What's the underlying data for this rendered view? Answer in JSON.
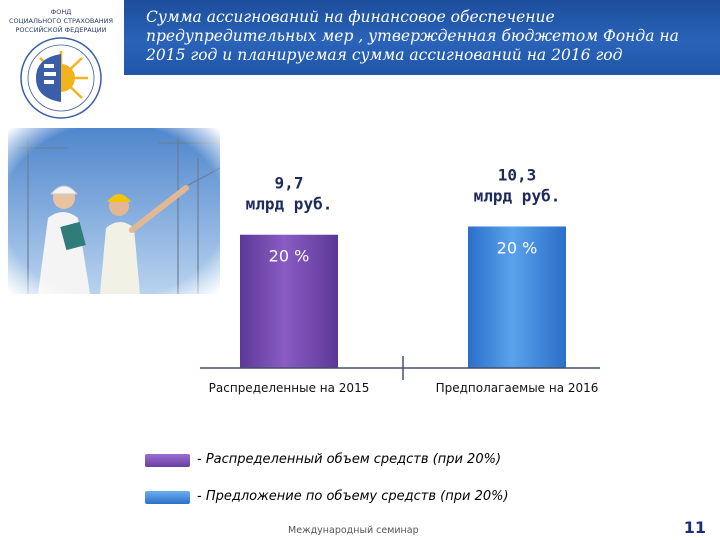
{
  "logo": {
    "line1": "ФОНД",
    "line2": "СОЦИАЛЬНОГО СТРАХОВАНИЯ",
    "line3": "РОССИЙСКОЙ ФЕДЕРАЦИИ"
  },
  "header": {
    "title": "Сумма ассигнований на финансовое обеспечение предупредительных мер , утвержденная бюджетом Фонда на 2015 год и планируемая сумма ассигнований на 2016 год",
    "background": "#2a63b8"
  },
  "chart_data": {
    "type": "bar",
    "categories": [
      "Распределенные на 2015",
      "Предполагаемые на 2016"
    ],
    "values": [
      9.7,
      10.3
    ],
    "value_labels": [
      [
        "9,7",
        "млрд руб."
      ],
      [
        "10,3",
        "млрд руб."
      ]
    ],
    "percent_labels": [
      "20 %",
      "20 %"
    ],
    "colors": [
      "#7a4eb0",
      "#4a8fe0"
    ],
    "ylim": [
      0,
      11.5
    ],
    "grid": false,
    "legend": [
      {
        "label": "- Распределенный объем средств (при 20%)",
        "color": "#7a4eb0"
      },
      {
        "label": "- Предложение по объему средств (при 20%)",
        "color": "#3a7fd8"
      }
    ]
  },
  "footer": {
    "text": "Международный семинар",
    "page": "11"
  }
}
